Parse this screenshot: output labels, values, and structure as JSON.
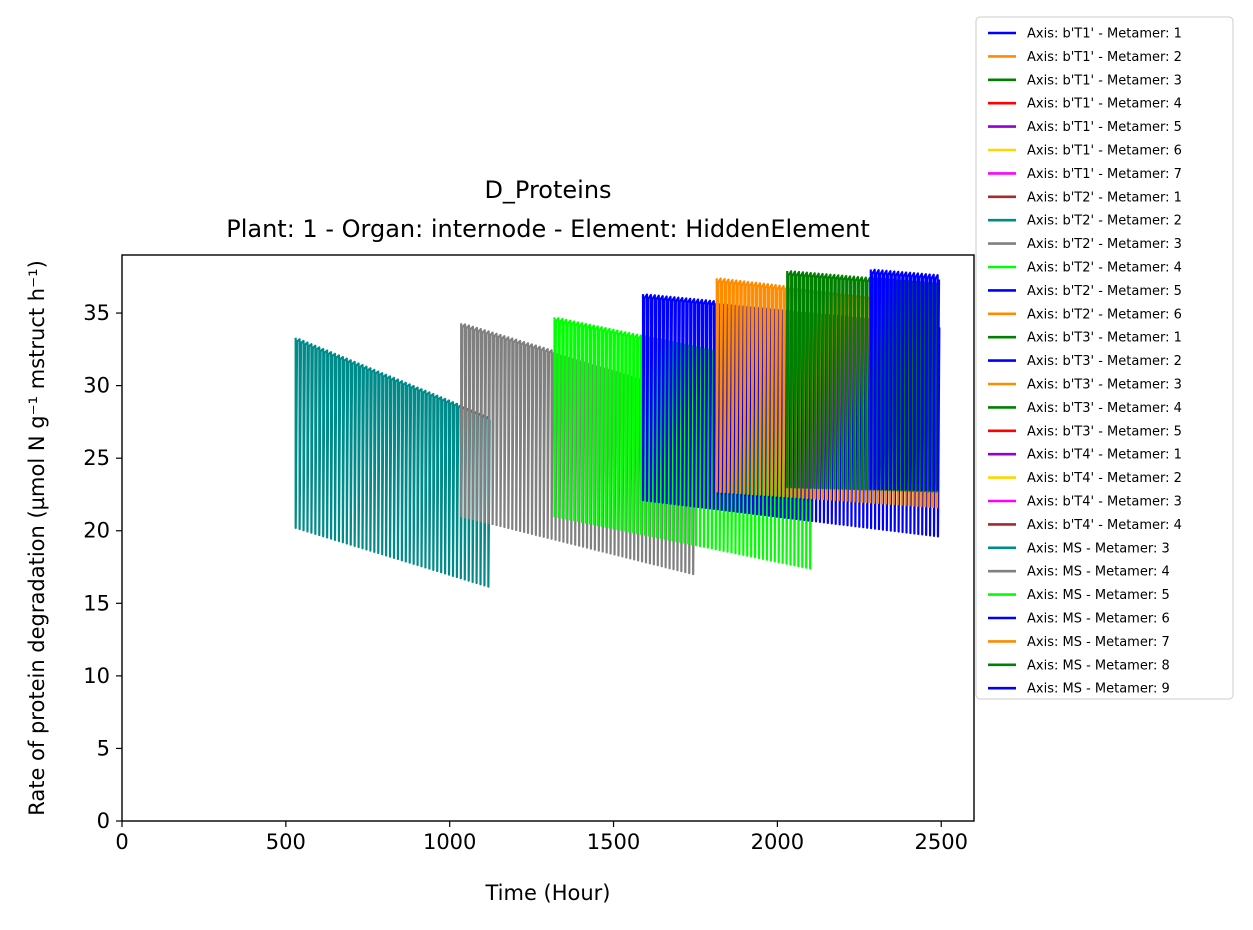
{
  "chart_data": {
    "type": "line",
    "title": "D_Proteins",
    "subtitle": "Plant: 1 - Organ: internode - Element: HiddenElement",
    "xlabel": "Time (Hour)",
    "ylabel": "Rate of protein degradation (µmol N g⁻¹ mstruct h⁻¹)",
    "xlim": [
      0,
      2600
    ],
    "ylim": [
      0,
      39
    ],
    "xticks": [
      "0",
      "500",
      "1000",
      "1500",
      "2000",
      "2500"
    ],
    "xtick_values": [
      0,
      500,
      1000,
      1500,
      2000,
      2500
    ],
    "yticks": [
      "0",
      "5",
      "10",
      "15",
      "20",
      "25",
      "30",
      "35"
    ],
    "ytick_values": [
      0,
      5,
      10,
      15,
      20,
      25,
      30,
      35
    ],
    "grid": false,
    "legend_position": "upper-right-outside",
    "series": [
      {
        "name": "Axis: b'T1' - Metamer: 1",
        "color": "#0000ff"
      },
      {
        "name": "Axis: b'T1' - Metamer: 2",
        "color": "#ff8c00"
      },
      {
        "name": "Axis: b'T1' - Metamer: 3",
        "color": "#008000"
      },
      {
        "name": "Axis: b'T1' - Metamer: 4",
        "color": "#ff0000"
      },
      {
        "name": "Axis: b'T1' - Metamer: 5",
        "color": "#9400d3"
      },
      {
        "name": "Axis: b'T1' - Metamer: 6",
        "color": "#ffd700"
      },
      {
        "name": "Axis: b'T1' - Metamer: 7",
        "color": "#ff00ff"
      },
      {
        "name": "Axis: b'T2' - Metamer: 1",
        "color": "#a52a2a"
      },
      {
        "name": "Axis: b'T2' - Metamer: 2",
        "color": "#008b8b"
      },
      {
        "name": "Axis: b'T2' - Metamer: 3",
        "color": "#808080"
      },
      {
        "name": "Axis: b'T2' - Metamer: 4",
        "color": "#00ff00"
      },
      {
        "name": "Axis: b'T2' - Metamer: 5",
        "color": "#0000ff"
      },
      {
        "name": "Axis: b'T2' - Metamer: 6",
        "color": "#ff8c00"
      },
      {
        "name": "Axis: b'T3' - Metamer: 1",
        "color": "#008000"
      },
      {
        "name": "Axis: b'T3' - Metamer: 2",
        "color": "#0000ff"
      },
      {
        "name": "Axis: b'T3' - Metamer: 3",
        "color": "#ff8c00"
      },
      {
        "name": "Axis: b'T3' - Metamer: 4",
        "color": "#008000"
      },
      {
        "name": "Axis: b'T3' - Metamer: 5",
        "color": "#ff0000"
      },
      {
        "name": "Axis: b'T4' - Metamer: 1",
        "color": "#9400d3"
      },
      {
        "name": "Axis: b'T4' - Metamer: 2",
        "color": "#ffd700"
      },
      {
        "name": "Axis: b'T4' - Metamer: 3",
        "color": "#ff00ff"
      },
      {
        "name": "Axis: b'T4' - Metamer: 4",
        "color": "#a52a2a"
      },
      {
        "name": "Axis: MS - Metamer: 3",
        "color": "#008b8b",
        "x_start": 530,
        "x_end": 1125,
        "upper_start": 33.3,
        "upper_end": 27.8,
        "lower_start": 20.2,
        "lower_end": 16.1
      },
      {
        "name": "Axis: MS - Metamer: 4",
        "color": "#808080",
        "x_start": 1035,
        "x_end": 1745,
        "upper_start": 34.3,
        "upper_end": 29.5,
        "lower_start": 21.0,
        "lower_end": 17.0
      },
      {
        "name": "Axis: MS - Metamer: 5",
        "color": "#00ff00",
        "x_start": 1320,
        "x_end": 2100,
        "upper_start": 34.7,
        "upper_end": 31.0,
        "lower_start": 21.0,
        "lower_end": 17.4
      },
      {
        "name": "Axis: MS - Metamer: 6",
        "color": "#0000ff",
        "x_start": 1590,
        "x_end": 2495,
        "upper_start": 36.3,
        "upper_end": 34.3,
        "lower_start": 22.1,
        "lower_end": 19.6
      },
      {
        "name": "Axis: MS - Metamer: 7",
        "color": "#ff8c00",
        "x_start": 1815,
        "x_end": 2495,
        "upper_start": 37.4,
        "upper_end": 35.6,
        "lower_start": 22.7,
        "lower_end": 21.6
      },
      {
        "name": "Axis: MS - Metamer: 8",
        "color": "#008000",
        "x_start": 2030,
        "x_end": 2495,
        "upper_start": 37.9,
        "upper_end": 37.0,
        "lower_start": 23.0,
        "lower_end": 22.7
      },
      {
        "name": "Axis: MS - Metamer: 9",
        "color": "#0000ff",
        "x_start": 2285,
        "x_end": 2495,
        "upper_start": 38.0,
        "upper_end": 37.6,
        "lower_start": 22.9,
        "lower_end": 22.8
      }
    ]
  }
}
